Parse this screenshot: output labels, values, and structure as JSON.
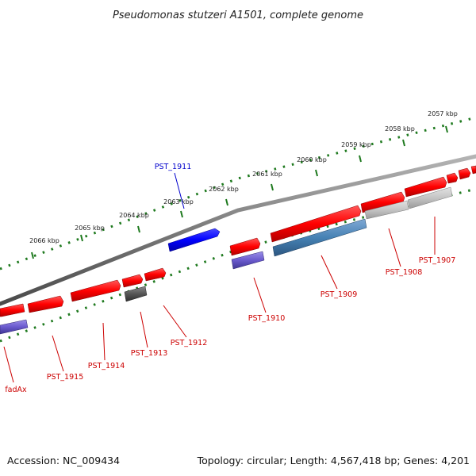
{
  "title": "Pseudomonas stutzeri A1501, complete genome",
  "footer": {
    "accession": "Accession: NC_009434",
    "summary": "Topology: circular; Length: 4,567,418 bp; Genes: 4,201"
  },
  "colors": {
    "backbone": "#808080",
    "tick": "#1f7a1f",
    "forward_gene": "#ff0000",
    "label_red": "#cc0000",
    "label_blue": "#0000cc"
  },
  "tick_labels": [
    {
      "id": "2057",
      "text": "2057 kbp"
    },
    {
      "id": "2058",
      "text": "2058 kbp"
    },
    {
      "id": "2059",
      "text": "2059 kbp"
    },
    {
      "id": "2060",
      "text": "2060 kbp"
    },
    {
      "id": "2061",
      "text": "2061 kbp"
    },
    {
      "id": "2062",
      "text": "2062 kbp"
    },
    {
      "id": "2063",
      "text": "2063 kbp"
    },
    {
      "id": "2064",
      "text": "2064 kbp"
    },
    {
      "id": "2065",
      "text": "2065 kbp"
    },
    {
      "id": "2066",
      "text": "2066 kbp"
    }
  ],
  "gene_labels": [
    {
      "id": "PST_1911",
      "text": "PST_1911",
      "color": "blue"
    },
    {
      "id": "PST_1907",
      "text": "PST_1907",
      "color": "red"
    },
    {
      "id": "PST_1908",
      "text": "PST_1908",
      "color": "red"
    },
    {
      "id": "PST_1909",
      "text": "PST_1909",
      "color": "red"
    },
    {
      "id": "PST_1910",
      "text": "PST_1910",
      "color": "red"
    },
    {
      "id": "PST_1912",
      "text": "PST_1912",
      "color": "red"
    },
    {
      "id": "PST_1913",
      "text": "PST_1913",
      "color": "red"
    },
    {
      "id": "PST_1914",
      "text": "PST_1914",
      "color": "red"
    },
    {
      "id": "PST_1915",
      "text": "PST_1915",
      "color": "red"
    },
    {
      "id": "fadAx",
      "text": "fadAx",
      "color": "red"
    }
  ]
}
